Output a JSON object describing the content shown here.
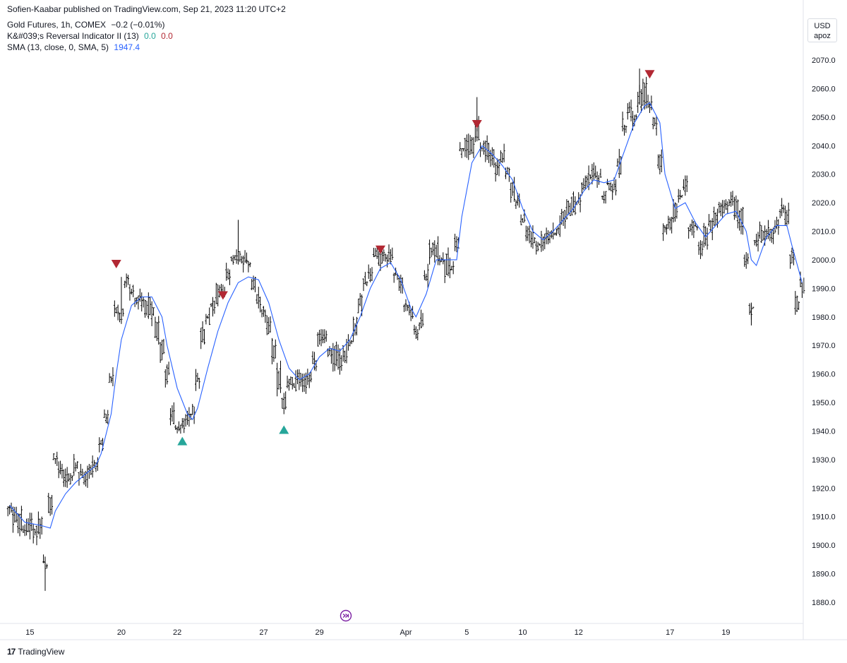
{
  "header": {
    "publisher": "Sofien-Kaabar published on TradingView.com, Sep 21, 2023 11:20 UTC+2"
  },
  "legend": {
    "symbol": "Gold Futures, 1h, COMEX",
    "change": "−0.2 (−0.01%)",
    "indicator_name": "K&#039;s Reversal Indicator II (13)",
    "indicator_v1": "0.0",
    "indicator_v2": "0.0",
    "sma_name": "SMA (13, close, 0, SMA, 5)",
    "sma_value": "1947.4"
  },
  "price_scale": {
    "currency": "USD",
    "mode": "apoz"
  },
  "footer": {
    "brand": "TradingView",
    "logo_icon": "tradingview-logo-icon"
  },
  "chart_data": {
    "type": "ohlc",
    "grid": false,
    "colors": {
      "bars": "#000000",
      "sma": "#2962ff",
      "bullish_signal": "#26a69a",
      "bearish_signal": "#b22833"
    },
    "y_axis": {
      "position": "right",
      "ylim": [
        1872,
        2078
      ],
      "ticks": [
        1880,
        1890,
        1900,
        1910,
        1920,
        1930,
        1940,
        1950,
        1960,
        1970,
        1980,
        1990,
        2000,
        2010,
        2020,
        2030,
        2040,
        2050,
        2060,
        2070
      ]
    },
    "x_axis": {
      "ticks": [
        {
          "label": "15",
          "i": 4
        },
        {
          "label": "20",
          "i": 22
        },
        {
          "label": "22",
          "i": 33
        },
        {
          "label": "27",
          "i": 50
        },
        {
          "label": "29",
          "i": 61
        },
        {
          "label": "Apr",
          "i": 78
        },
        {
          "label": "5",
          "i": 90
        },
        {
          "label": "10",
          "i": 101
        },
        {
          "label": "12",
          "i": 112
        },
        {
          "label": "17",
          "i": 130
        },
        {
          "label": "19",
          "i": 141
        }
      ]
    },
    "bar_count": 157,
    "anchors": [
      [
        0,
        1913
      ],
      [
        3,
        1906
      ],
      [
        6,
        1906
      ],
      [
        7,
        1896
      ],
      [
        8,
        1915
      ],
      [
        9,
        1930
      ],
      [
        11,
        1922
      ],
      [
        13,
        1928
      ],
      [
        15,
        1924
      ],
      [
        17,
        1928
      ],
      [
        18,
        1935
      ],
      [
        20,
        1958
      ],
      [
        21,
        1985
      ],
      [
        22,
        1982
      ],
      [
        23,
        1995
      ],
      [
        24,
        1990
      ],
      [
        26,
        1985
      ],
      [
        28,
        1982
      ],
      [
        29,
        1975
      ],
      [
        31,
        1960
      ],
      [
        32,
        1945
      ],
      [
        33,
        1942
      ],
      [
        34,
        1944
      ],
      [
        35,
        1945
      ],
      [
        36,
        1945
      ],
      [
        37,
        1960
      ],
      [
        38,
        1975
      ],
      [
        40,
        1985
      ],
      [
        42,
        1990
      ],
      [
        44,
        1998
      ],
      [
        45,
        2002
      ],
      [
        47,
        1998
      ],
      [
        48,
        1990
      ],
      [
        50,
        1980
      ],
      [
        52,
        1970
      ],
      [
        53,
        1958
      ],
      [
        54,
        1950
      ],
      [
        55,
        1955
      ],
      [
        56,
        1958
      ],
      [
        57,
        1960
      ],
      [
        58,
        1955
      ],
      [
        59,
        1960
      ],
      [
        61,
        1972
      ],
      [
        63,
        1970
      ],
      [
        65,
        1965
      ],
      [
        67,
        1970
      ],
      [
        69,
        1985
      ],
      [
        70,
        1992
      ],
      [
        72,
        2000
      ],
      [
        74,
        2000
      ],
      [
        76,
        1998
      ],
      [
        78,
        1985
      ],
      [
        80,
        1975
      ],
      [
        81,
        1978
      ],
      [
        82,
        1995
      ],
      [
        83,
        2005
      ],
      [
        85,
        2002
      ],
      [
        86,
        1998
      ],
      [
        87,
        1997
      ],
      [
        88,
        2004
      ],
      [
        89,
        2040
      ],
      [
        91,
        2040
      ],
      [
        92,
        2045
      ],
      [
        94,
        2038
      ],
      [
        96,
        2033
      ],
      [
        97,
        2035
      ],
      [
        99,
        2025
      ],
      [
        101,
        2012
      ],
      [
        103,
        2008
      ],
      [
        105,
        2005
      ],
      [
        107,
        2008
      ],
      [
        108,
        2012
      ],
      [
        110,
        2018
      ],
      [
        112,
        2020
      ],
      [
        114,
        2030
      ],
      [
        116,
        2028
      ],
      [
        117,
        2022
      ],
      [
        119,
        2028
      ],
      [
        120,
        2032
      ],
      [
        121,
        2048
      ],
      [
        123,
        2052
      ],
      [
        125,
        2058
      ],
      [
        126,
        2055
      ],
      [
        127,
        2048
      ],
      [
        128,
        2035
      ],
      [
        129,
        2010
      ],
      [
        130,
        2012
      ],
      [
        131,
        2016
      ],
      [
        132,
        2022
      ],
      [
        133,
        2024
      ],
      [
        134,
        2014
      ],
      [
        136,
        2005
      ],
      [
        138,
        2012
      ],
      [
        140,
        2018
      ],
      [
        142,
        2020
      ],
      [
        144,
        2015
      ],
      [
        145,
        2000
      ],
      [
        146,
        1985
      ],
      [
        147,
        2005
      ],
      [
        148,
        2008
      ],
      [
        150,
        2010
      ],
      [
        152,
        2018
      ],
      [
        153,
        2016
      ],
      [
        155,
        1985
      ],
      [
        156,
        1990
      ]
    ],
    "sma_anchors": [
      [
        0,
        1914
      ],
      [
        3,
        1908
      ],
      [
        6,
        1907
      ],
      [
        8,
        1906
      ],
      [
        9,
        1912
      ],
      [
        11,
        1918
      ],
      [
        13,
        1922
      ],
      [
        15,
        1925
      ],
      [
        17,
        1928
      ],
      [
        18,
        1932
      ],
      [
        20,
        1946
      ],
      [
        21,
        1960
      ],
      [
        22,
        1972
      ],
      [
        24,
        1984
      ],
      [
        26,
        1987
      ],
      [
        28,
        1987
      ],
      [
        30,
        1980
      ],
      [
        31,
        1970
      ],
      [
        33,
        1955
      ],
      [
        35,
        1946
      ],
      [
        36,
        1944
      ],
      [
        37,
        1948
      ],
      [
        39,
        1962
      ],
      [
        41,
        1975
      ],
      [
        43,
        1985
      ],
      [
        45,
        1992
      ],
      [
        47,
        1994
      ],
      [
        49,
        1993
      ],
      [
        51,
        1985
      ],
      [
        53,
        1972
      ],
      [
        55,
        1962
      ],
      [
        57,
        1958
      ],
      [
        59,
        1960
      ],
      [
        61,
        1966
      ],
      [
        63,
        1969
      ],
      [
        65,
        1968
      ],
      [
        67,
        1972
      ],
      [
        69,
        1980
      ],
      [
        71,
        1990
      ],
      [
        73,
        1997
      ],
      [
        75,
        1999
      ],
      [
        77,
        1993
      ],
      [
        79,
        1983
      ],
      [
        80,
        1980
      ],
      [
        82,
        1988
      ],
      [
        84,
        2000
      ],
      [
        86,
        2000
      ],
      [
        88,
        2000
      ],
      [
        89,
        2015
      ],
      [
        91,
        2034
      ],
      [
        93,
        2040
      ],
      [
        95,
        2037
      ],
      [
        97,
        2033
      ],
      [
        99,
        2028
      ],
      [
        101,
        2018
      ],
      [
        103,
        2010
      ],
      [
        105,
        2007
      ],
      [
        107,
        2010
      ],
      [
        109,
        2014
      ],
      [
        111,
        2018
      ],
      [
        113,
        2024
      ],
      [
        115,
        2028
      ],
      [
        117,
        2027
      ],
      [
        119,
        2028
      ],
      [
        121,
        2038
      ],
      [
        123,
        2048
      ],
      [
        125,
        2054
      ],
      [
        126,
        2055
      ],
      [
        128,
        2048
      ],
      [
        129,
        2030
      ],
      [
        131,
        2018
      ],
      [
        133,
        2020
      ],
      [
        135,
        2013
      ],
      [
        137,
        2008
      ],
      [
        139,
        2012
      ],
      [
        141,
        2016
      ],
      [
        143,
        2017
      ],
      [
        145,
        2010
      ],
      [
        146,
        2000
      ],
      [
        147,
        1998
      ],
      [
        149,
        2008
      ],
      [
        151,
        2012
      ],
      [
        153,
        2012
      ],
      [
        154,
        2005
      ],
      [
        156,
        1992
      ]
    ],
    "signals": [
      {
        "type": "bearish",
        "i": 21,
        "price": 1998.5
      },
      {
        "type": "bullish",
        "i": 34,
        "price": 1936.5
      },
      {
        "type": "bearish",
        "i": 42,
        "price": 1987.5
      },
      {
        "type": "bullish",
        "i": 54,
        "price": 1940.5
      },
      {
        "type": "bearish",
        "i": 73,
        "price": 2003.5
      },
      {
        "type": "bearish",
        "i": 92,
        "price": 2047.5
      },
      {
        "type": "bearish",
        "i": 126,
        "price": 2065.0
      }
    ]
  }
}
